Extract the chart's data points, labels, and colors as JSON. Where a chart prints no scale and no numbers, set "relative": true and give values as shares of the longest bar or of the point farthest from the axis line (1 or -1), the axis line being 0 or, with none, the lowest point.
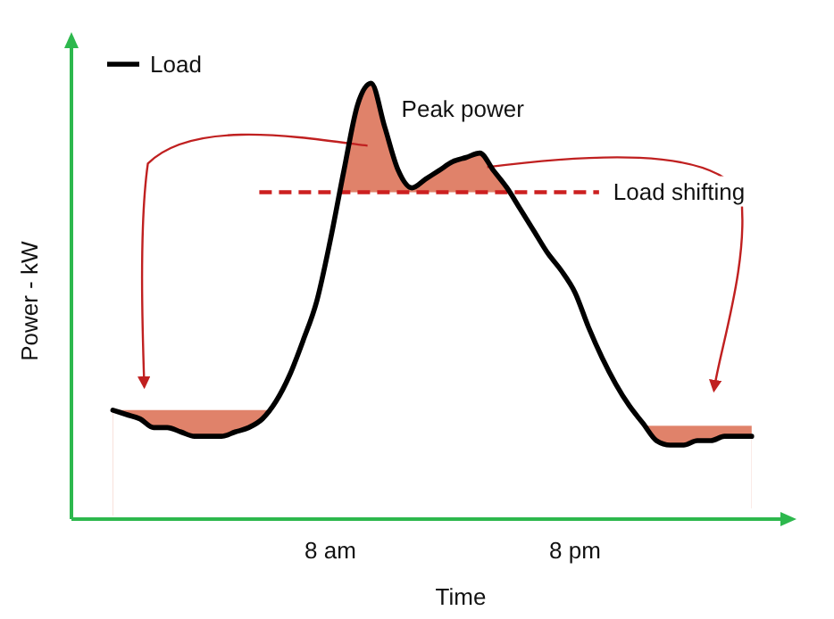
{
  "chart_data": {
    "type": "line",
    "relative": true,
    "xlabel": "Time",
    "ylabel": "Power - kW",
    "categories": [
      null,
      null,
      null,
      null,
      null,
      null,
      null,
      null,
      null,
      null,
      null,
      null,
      null,
      null,
      null,
      null,
      "8 am",
      null,
      null,
      null,
      null,
      null,
      null,
      null,
      null,
      null,
      null,
      null,
      null,
      null,
      null,
      null,
      null,
      null,
      "8 pm",
      null,
      null,
      null,
      null,
      null,
      null,
      null,
      null,
      null,
      null,
      null,
      null,
      null
    ],
    "legend": "top left",
    "marker": "none",
    "line_style": "solid",
    "series": [
      {
        "name": "Load",
        "color": "#000000",
        "values": [
          0.25,
          0.24,
          0.23,
          0.21,
          0.21,
          0.2,
          0.19,
          0.19,
          0.19,
          0.2,
          0.21,
          0.23,
          0.27,
          0.33,
          0.41,
          0.5,
          0.64,
          0.8,
          0.95,
          1.0,
          0.9,
          0.8,
          0.76,
          0.78,
          0.8,
          0.82,
          0.83,
          0.84,
          0.8,
          0.76,
          0.71,
          0.66,
          0.61,
          0.57,
          0.52,
          0.44,
          0.37,
          0.31,
          0.26,
          0.22,
          0.18,
          0.17,
          0.17,
          0.18,
          0.18,
          0.19,
          0.19,
          0.19
        ]
      }
    ],
    "ref_lines": [
      {
        "axis": "y",
        "value": 0.75,
        "label": "Load shifting",
        "color": "#cc2020",
        "line_style": "dashed"
      }
    ],
    "annotations": [
      "Peak power"
    ]
  }
}
